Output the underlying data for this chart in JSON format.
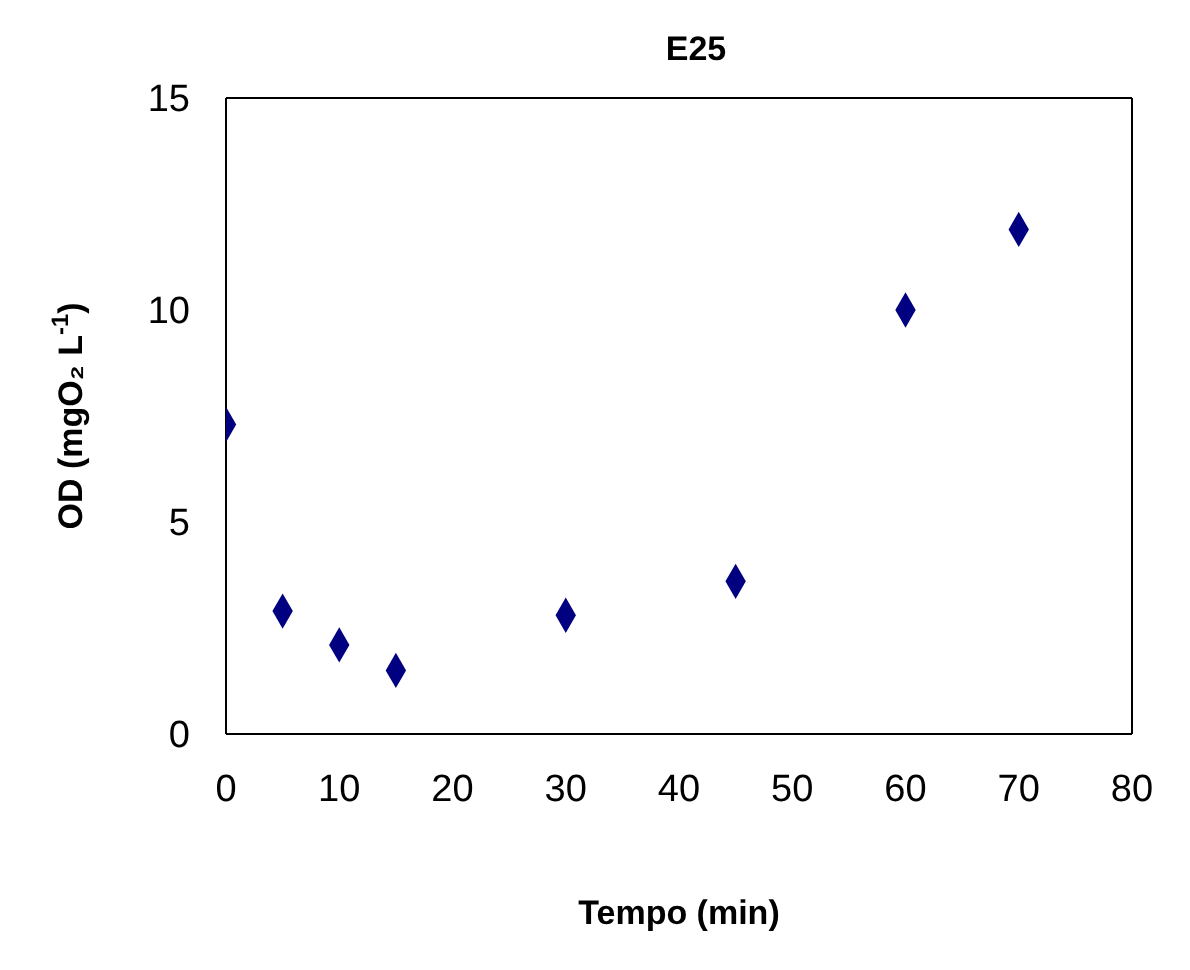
{
  "chart_data": {
    "type": "scatter",
    "title": "E25",
    "xlabel": "Tempo (min)",
    "ylabel": "OD (mgO₂ L$^{-1}$)",
    "x": [
      0,
      5,
      10,
      15,
      30,
      45,
      60,
      70
    ],
    "series": [
      {
        "color": "#000080",
        "values": [
          7.3,
          2.9,
          2.1,
          1.5,
          2.8,
          3.6,
          10.0,
          11.9
        ]
      }
    ],
    "xlim": [
      0,
      80
    ],
    "xticks": [
      0,
      10,
      20,
      30,
      40,
      50,
      60,
      70,
      80
    ],
    "ylim": [
      0,
      15
    ],
    "yticks": [
      0,
      5,
      10,
      15
    ],
    "marker": "diamond"
  }
}
